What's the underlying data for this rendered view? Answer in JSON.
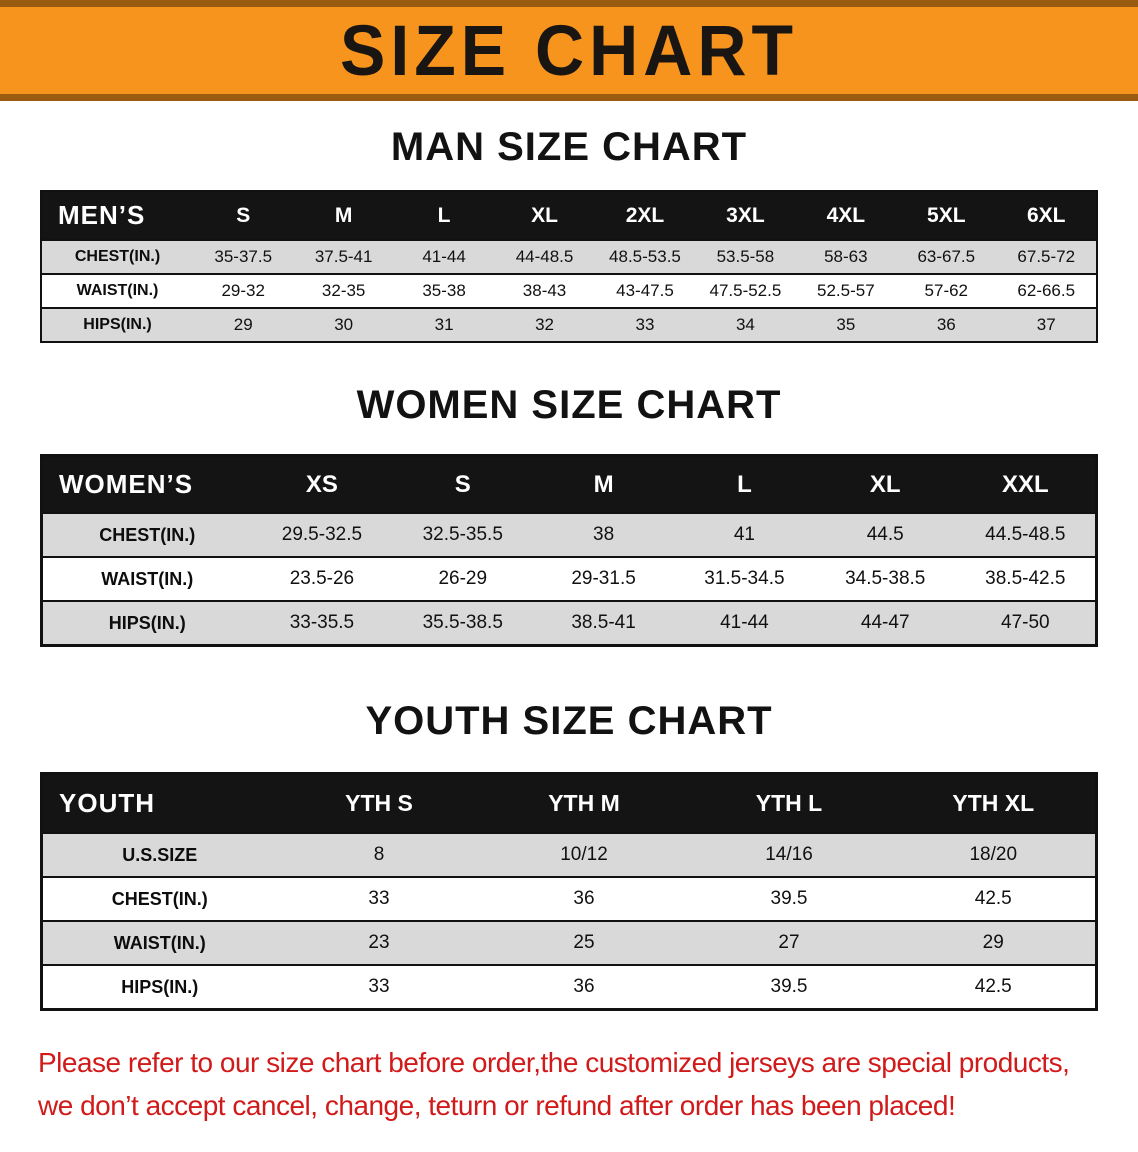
{
  "banner": {
    "title": "SIZE CHART"
  },
  "sections": {
    "men": {
      "heading": "MAN SIZE CHART",
      "table": {
        "header": [
          "MEN’S",
          "S",
          "M",
          "L",
          "XL",
          "2XL",
          "3XL",
          "4XL",
          "5XL",
          "6XL"
        ],
        "rows": [
          [
            "CHEST(IN.)",
            "35-37.5",
            "37.5-41",
            "41-44",
            "44-48.5",
            "48.5-53.5",
            "53.5-58",
            "58-63",
            "63-67.5",
            "67.5-72"
          ],
          [
            "WAIST(IN.)",
            "29-32",
            "32-35",
            "35-38",
            "38-43",
            "43-47.5",
            "47.5-52.5",
            "52.5-57",
            "57-62",
            "62-66.5"
          ],
          [
            "HIPS(IN.)",
            "29",
            "30",
            "31",
            "32",
            "33",
            "34",
            "35",
            "36",
            "37"
          ]
        ]
      }
    },
    "women": {
      "heading": "WOMEN SIZE CHART",
      "table": {
        "header": [
          "WOMEN’S",
          "XS",
          "S",
          "M",
          "L",
          "XL",
          "XXL"
        ],
        "rows": [
          [
            "CHEST(IN.)",
            "29.5-32.5",
            "32.5-35.5",
            "38",
            "41",
            "44.5",
            "44.5-48.5"
          ],
          [
            "WAIST(IN.)",
            "23.5-26",
            "26-29",
            "29-31.5",
            "31.5-34.5",
            "34.5-38.5",
            "38.5-42.5"
          ],
          [
            "HIPS(IN.)",
            "33-35.5",
            "35.5-38.5",
            "38.5-41",
            "41-44",
            "44-47",
            "47-50"
          ]
        ]
      }
    },
    "youth": {
      "heading": "YOUTH SIZE CHART",
      "table": {
        "header": [
          "YOUTH",
          "YTH S",
          "YTH M",
          "YTH L",
          "YTH XL"
        ],
        "rows": [
          [
            "U.S.SIZE",
            "8",
            "10/12",
            "14/16",
            "18/20"
          ],
          [
            "CHEST(IN.)",
            "33",
            "36",
            "39.5",
            "42.5"
          ],
          [
            "WAIST(IN.)",
            "23",
            "25",
            "27",
            "29"
          ],
          [
            "HIPS(IN.)",
            "33",
            "36",
            "39.5",
            "42.5"
          ]
        ]
      }
    }
  },
  "disclaimer": {
    "line1": "Please refer to our size chart before order,the customized jerseys are special products,",
    "line2": "we don’t accept cancel, change, teturn or refund after order has been placed!"
  },
  "colors": {
    "banner_orange": "#f7941e",
    "banner_edge": "#9a5a10",
    "header_black": "#141414",
    "row_gray": "#d9d9d9",
    "disclaimer_red": "#d11a1a"
  }
}
